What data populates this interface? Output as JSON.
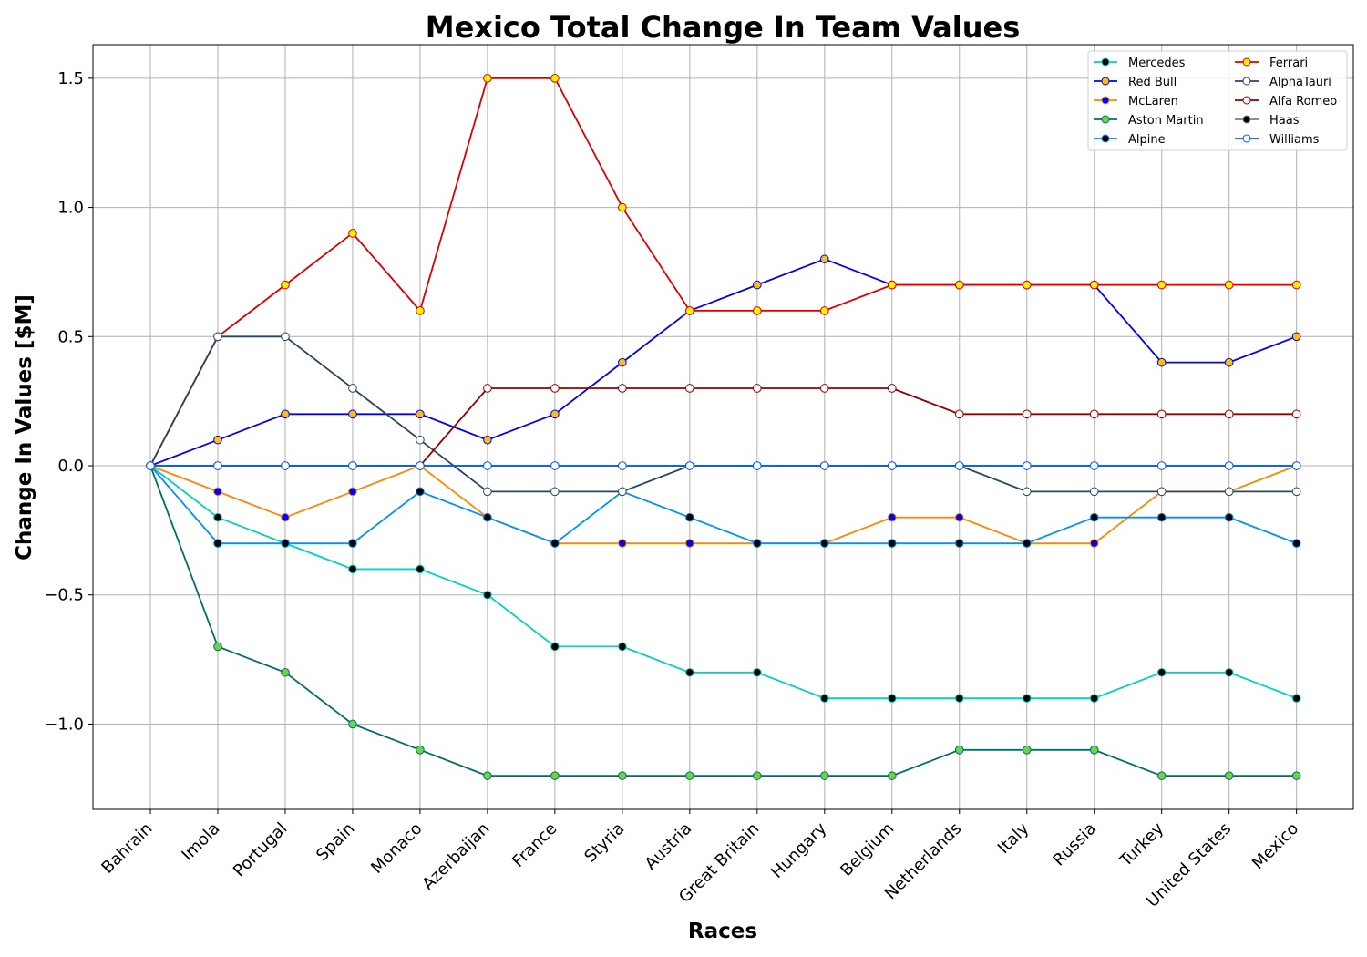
{
  "chart_data": {
    "type": "line",
    "title": "Mexico Total Change In Team Values",
    "xlabel": "Races",
    "ylabel": "Change In Values [$M]",
    "ylim": [
      -1.33,
      1.63
    ],
    "yticks": [
      -1.0,
      -0.5,
      0.0,
      0.5,
      1.0,
      1.5
    ],
    "ytick_labels": [
      "−1.0",
      "−0.5",
      "0.0",
      "0.5",
      "1.0",
      "1.5"
    ],
    "categories": [
      "Bahrain",
      "Imola",
      "Portugal",
      "Spain",
      "Monaco",
      "Azerbaijan",
      "France",
      "Styria",
      "Austria",
      "Great Britain",
      "Hungary",
      "Belgium",
      "Netherlands",
      "Italy",
      "Russia",
      "Turkey",
      "United States",
      "Mexico"
    ],
    "grid": true,
    "legend_position": "top-right",
    "legend_columns": 2,
    "series": [
      {
        "name": "Mercedes",
        "line_color": "#00d2be",
        "marker_fill": "#000000",
        "marker_edge": "#00d2be",
        "values": [
          0,
          -0.2,
          -0.3,
          -0.4,
          -0.4,
          -0.5,
          -0.7,
          -0.7,
          -0.8,
          -0.8,
          -0.9,
          -0.9,
          -0.9,
          -0.9,
          -0.9,
          -0.8,
          -0.8,
          -0.9
        ]
      },
      {
        "name": "Red Bull",
        "line_color": "#0600ef",
        "marker_fill": "#ffc000",
        "marker_edge": "#0600ef",
        "values": [
          0,
          0.1,
          0.2,
          0.2,
          0.2,
          0.1,
          0.2,
          0.4,
          0.6,
          0.7,
          0.8,
          0.7,
          0.7,
          0.7,
          0.7,
          0.4,
          0.4,
          0.5
        ]
      },
      {
        "name": "McLaren",
        "line_color": "#ff8700",
        "marker_fill": "#0600ef",
        "marker_edge": "#ff8700",
        "values": [
          0,
          -0.1,
          -0.2,
          -0.1,
          0,
          -0.2,
          -0.3,
          -0.3,
          -0.3,
          -0.3,
          -0.3,
          -0.2,
          -0.2,
          -0.3,
          -0.3,
          -0.1,
          -0.1,
          0
        ]
      },
      {
        "name": "Aston Martin",
        "line_color": "#006f62",
        "marker_fill": "#6cd34a",
        "marker_edge": "#006f62",
        "values": [
          0,
          -0.7,
          -0.8,
          -1.0,
          -1.1,
          -1.2,
          -1.2,
          -1.2,
          -1.2,
          -1.2,
          -1.2,
          -1.2,
          -1.1,
          -1.1,
          -1.1,
          -1.2,
          -1.2,
          -1.2
        ]
      },
      {
        "name": "Alpine",
        "line_color": "#0090ff",
        "marker_fill": "#000000",
        "marker_edge": "#0090ff",
        "values": [
          0,
          -0.3,
          -0.3,
          -0.3,
          -0.1,
          -0.2,
          -0.3,
          -0.1,
          -0.2,
          -0.3,
          -0.3,
          -0.3,
          -0.3,
          -0.3,
          -0.2,
          -0.2,
          -0.2,
          -0.3
        ]
      },
      {
        "name": "Ferrari",
        "line_color": "#dc0000",
        "marker_fill": "#fff200",
        "marker_edge": "#dc0000",
        "values": [
          0,
          0.5,
          0.7,
          0.9,
          0.6,
          1.5,
          1.5,
          1.0,
          0.6,
          0.6,
          0.6,
          0.7,
          0.7,
          0.7,
          0.7,
          0.7,
          0.7,
          0.7
        ]
      },
      {
        "name": "AlphaTauri",
        "line_color": "#2b4562",
        "marker_fill": "#ffffff",
        "marker_edge": "#2b4562",
        "values": [
          0,
          0.5,
          0.5,
          0.3,
          0.1,
          -0.1,
          -0.1,
          -0.1,
          0,
          0,
          0,
          0,
          0,
          -0.1,
          -0.1,
          -0.1,
          -0.1,
          -0.1
        ]
      },
      {
        "name": "Alfa Romeo",
        "line_color": "#900000",
        "marker_fill": "#ffffff",
        "marker_edge": "#900000",
        "values": [
          0,
          0,
          0,
          0,
          0,
          0.3,
          0.3,
          0.3,
          0.3,
          0.3,
          0.3,
          0.3,
          0.2,
          0.2,
          0.2,
          0.2,
          0.2,
          0.2
        ]
      },
      {
        "name": "Haas",
        "line_color": "#808080",
        "marker_fill": "#000000",
        "marker_edge": "#808080",
        "values": [
          0,
          0,
          0,
          0,
          0,
          0,
          0,
          0,
          0,
          0,
          0,
          0,
          0,
          0,
          0,
          0,
          0,
          0
        ]
      },
      {
        "name": "Williams",
        "line_color": "#005aff",
        "marker_fill": "#ffffff",
        "marker_edge": "#005aff",
        "values": [
          0,
          0,
          0,
          0,
          0,
          0,
          0,
          0,
          0,
          0,
          0,
          0,
          0,
          0,
          0,
          0,
          0,
          0
        ]
      }
    ]
  }
}
